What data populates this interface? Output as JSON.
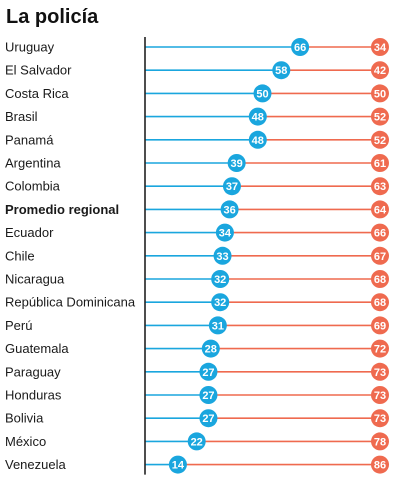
{
  "chart_data": {
    "type": "dumbbell",
    "title": "La policía",
    "categories": [
      "Uruguay",
      "El Salvador",
      "Costa Rica",
      "Brasil",
      "Panamá",
      "Argentina",
      "Colombia",
      "Promedio regional",
      "Ecuador",
      "Chile",
      "Nicaragua",
      "República Dominicana",
      "Perú",
      "Guatemala",
      "Paraguay",
      "Honduras",
      "Bolivia",
      "México",
      "Venezuela"
    ],
    "highlight_category": "Promedio regional",
    "series": [
      {
        "values": [
          66,
          58,
          50,
          48,
          48,
          39,
          37,
          36,
          34,
          33,
          32,
          32,
          31,
          28,
          27,
          27,
          27,
          22,
          14
        ]
      },
      {
        "values": [
          34,
          42,
          50,
          52,
          52,
          61,
          63,
          64,
          66,
          67,
          68,
          68,
          69,
          72,
          73,
          73,
          73,
          78,
          86
        ]
      }
    ],
    "xlim": [
      0,
      100
    ],
    "colors": {
      "series_a": "#1aa6de",
      "series_b": "#ef6a4f",
      "axis": "#222222"
    }
  }
}
